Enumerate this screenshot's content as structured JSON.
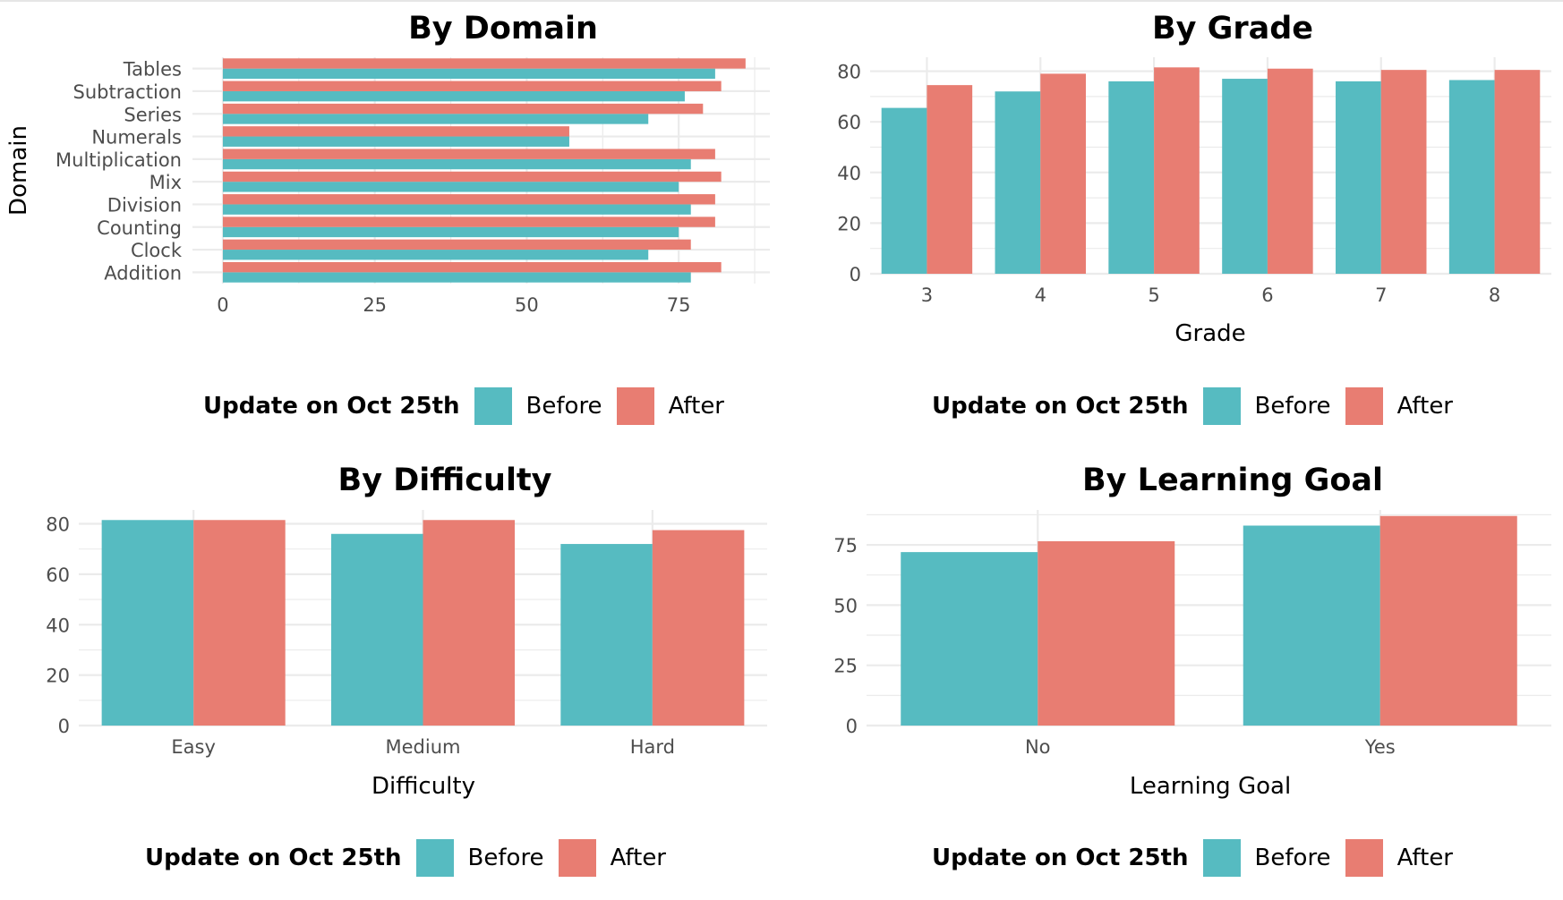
{
  "colors": {
    "before": "#56BBC1",
    "after": "#E87D72",
    "grid": "#ebebeb",
    "text": "#4d4d4d"
  },
  "legend": {
    "title": "Update on Oct 25th",
    "items": [
      "Before",
      "After"
    ]
  },
  "chart_data": [
    {
      "type": "bar",
      "orientation": "horizontal",
      "title": "By Domain",
      "xlabel": "",
      "ylabel": "Domain",
      "categories": [
        "Addition",
        "Clock",
        "Counting",
        "Division",
        "Mix",
        "Multiplication",
        "Numerals",
        "Series",
        "Subtraction",
        "Tables"
      ],
      "series": [
        {
          "name": "Before",
          "values": [
            77,
            70,
            75,
            77,
            75,
            77,
            57,
            70,
            76,
            81
          ]
        },
        {
          "name": "After",
          "values": [
            82,
            77,
            81,
            81,
            82,
            81,
            57,
            79,
            82,
            86
          ]
        }
      ],
      "xlim": [
        -5,
        90
      ],
      "ticks": [
        0,
        25,
        50,
        75
      ],
      "tick_labels": [
        "0",
        "25",
        "50",
        "75"
      ],
      "grid": true,
      "legend_position": "bottom"
    },
    {
      "type": "bar",
      "title": "By Grade",
      "xlabel": "Grade",
      "ylabel": "",
      "categories": [
        "3",
        "4",
        "5",
        "6",
        "7",
        "8"
      ],
      "series": [
        {
          "name": "Before",
          "values": [
            65.5,
            72,
            76,
            77,
            76,
            76.5
          ]
        },
        {
          "name": "After",
          "values": [
            74.5,
            79,
            81.5,
            81,
            80.5,
            80.5
          ]
        }
      ],
      "ylim": [
        0,
        85.5
      ],
      "ticks": [
        0,
        20,
        40,
        60,
        80
      ],
      "tick_labels": [
        "0",
        "20",
        "40",
        "60",
        "80"
      ],
      "grid": true,
      "legend_position": "bottom"
    },
    {
      "type": "bar",
      "title": "By Difficulty",
      "xlabel": "Difficulty",
      "ylabel": "",
      "categories": [
        "Easy",
        "Medium",
        "Hard"
      ],
      "series": [
        {
          "name": "Before",
          "values": [
            81.5,
            76,
            72
          ]
        },
        {
          "name": "After",
          "values": [
            81.5,
            81.5,
            77.5
          ]
        }
      ],
      "ylim": [
        0,
        85.5
      ],
      "ticks": [
        0,
        20,
        40,
        60,
        80
      ],
      "tick_labels": [
        "0",
        "20",
        "40",
        "60",
        "80"
      ],
      "grid": true,
      "legend_position": "bottom"
    },
    {
      "type": "bar",
      "title": "By Learning Goal",
      "xlabel": "Learning Goal",
      "ylabel": "",
      "categories": [
        "No",
        "Yes"
      ],
      "series": [
        {
          "name": "Before",
          "values": [
            72,
            83
          ]
        },
        {
          "name": "After",
          "values": [
            76.5,
            87
          ]
        }
      ],
      "ylim": [
        0,
        89.5
      ],
      "ticks": [
        0,
        25,
        50,
        75
      ],
      "tick_labels": [
        "0",
        "25",
        "50",
        "75"
      ],
      "grid": true,
      "legend_position": "bottom"
    }
  ]
}
